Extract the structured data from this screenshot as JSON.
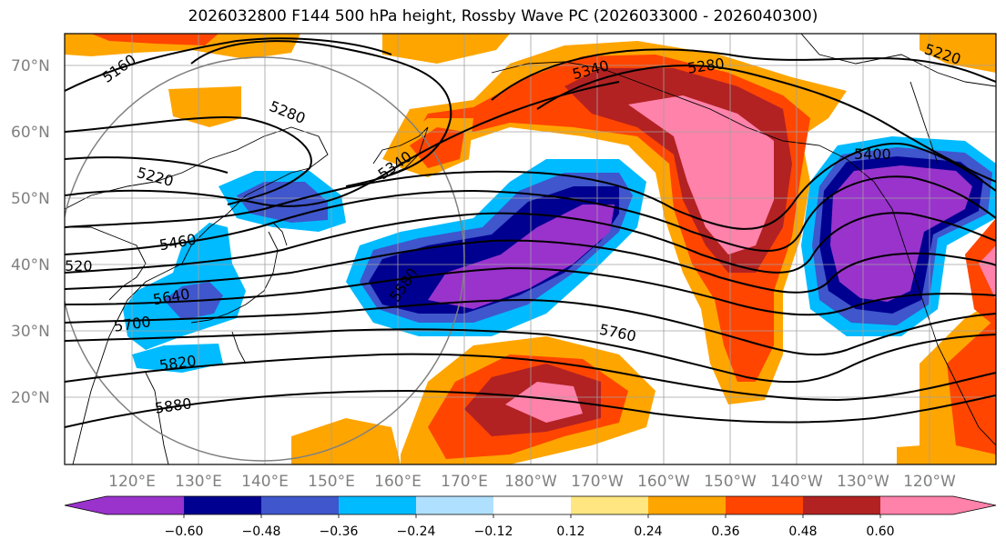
{
  "title": "2026032800 F144 500 hPa height, Rossby Wave PC (2026033000 - 2026040300)",
  "map": {
    "lat_labels": [
      "70°N",
      "60°N",
      "50°N",
      "40°N",
      "30°N",
      "20°N"
    ],
    "lon_labels": [
      "120°E",
      "130°E",
      "140°E",
      "150°E",
      "160°E",
      "170°E",
      "180°W",
      "170°W",
      "160°W",
      "150°W",
      "140°W",
      "130°W",
      "120°W"
    ],
    "contour_labels": [
      "5160",
      "5280",
      "5220",
      "5340",
      "5340",
      "5280",
      "5220",
      "5400",
      "5460",
      "520",
      "5580",
      "5640",
      "5700",
      "5760",
      "5820",
      "5880"
    ],
    "line_color": "#000000",
    "grid_color": "#a0a0a0",
    "land_outline_color": "#000000",
    "circle_color": "#808080"
  },
  "colorbar": {
    "ticks": [
      "−0.60",
      "−0.48",
      "−0.36",
      "−0.24",
      "−0.12",
      "0.12",
      "0.24",
      "0.36",
      "0.48",
      "0.60"
    ],
    "colors": [
      "#9933cc",
      "#000090",
      "#3f56cc",
      "#00bbff",
      "#b0e0ff",
      "#ffffff",
      "#ffe680",
      "#ffa500",
      "#ff4500",
      "#b22222",
      "#ff82ab"
    ]
  }
}
